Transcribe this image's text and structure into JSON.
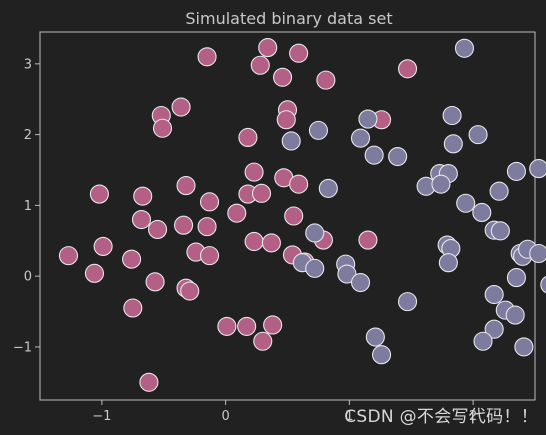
{
  "chart_data": {
    "type": "scatter",
    "title": "Simulated binary data set",
    "xlabel": "",
    "ylabel": "",
    "xlim": [
      -1.5,
      2.5
    ],
    "ylim": [
      -1.75,
      3.45
    ],
    "xticks": [
      -1,
      0,
      1,
      2
    ],
    "xtick_labels": [
      "−1",
      "0",
      "1",
      "2"
    ],
    "yticks": [
      -1,
      0,
      1,
      2,
      3
    ],
    "ytick_labels": [
      "−1",
      "0",
      "1",
      "2",
      "3"
    ],
    "grid": false,
    "legend": "none",
    "colors": {
      "background": "#212121",
      "axis": "#bdbdbd",
      "text": "#c8c8c8",
      "point_edge": "#e6e6ea",
      "class0": "#b45f86",
      "class1": "#7d7b9e"
    },
    "series": [
      {
        "color": "#b45f86",
        "points": [
          [
            0.34,
            3.23
          ],
          [
            0.59,
            3.15
          ],
          [
            -0.15,
            3.1
          ],
          [
            0.28,
            2.98
          ],
          [
            0.46,
            2.81
          ],
          [
            0.81,
            2.77
          ],
          [
            1.47,
            2.93
          ],
          [
            -0.52,
            2.27
          ],
          [
            -0.36,
            2.39
          ],
          [
            -0.51,
            2.09
          ],
          [
            0.5,
            2.35
          ],
          [
            0.49,
            2.21
          ],
          [
            0.18,
            1.96
          ],
          [
            1.26,
            2.21
          ],
          [
            -1.02,
            1.16
          ],
          [
            -0.67,
            1.13
          ],
          [
            -0.32,
            1.28
          ],
          [
            -0.13,
            1.05
          ],
          [
            0.18,
            1.16
          ],
          [
            0.23,
            1.47
          ],
          [
            0.29,
            1.17
          ],
          [
            0.47,
            1.39
          ],
          [
            0.59,
            1.3
          ],
          [
            -0.68,
            0.8
          ],
          [
            -0.55,
            0.66
          ],
          [
            -0.34,
            0.72
          ],
          [
            -0.15,
            0.7
          ],
          [
            0.09,
            0.89
          ],
          [
            0.55,
            0.85
          ],
          [
            -1.27,
            0.29
          ],
          [
            -0.99,
            0.42
          ],
          [
            -1.06,
            0.04
          ],
          [
            -0.76,
            0.24
          ],
          [
            -0.24,
            0.34
          ],
          [
            -0.13,
            0.29
          ],
          [
            0.23,
            0.49
          ],
          [
            0.37,
            0.47
          ],
          [
            0.54,
            0.3
          ],
          [
            0.64,
            0.2
          ],
          [
            0.79,
            0.51
          ],
          [
            1.15,
            0.51
          ],
          [
            -0.57,
            -0.08
          ],
          [
            -0.32,
            -0.17
          ],
          [
            -0.29,
            -0.21
          ],
          [
            -0.75,
            -0.45
          ],
          [
            0.01,
            -0.71
          ],
          [
            0.17,
            -0.71
          ],
          [
            0.38,
            -0.69
          ],
          [
            0.3,
            -0.92
          ],
          [
            -0.62,
            -1.5
          ]
        ]
      },
      {
        "color": "#7d7b9e",
        "points": [
          [
            1.93,
            3.22
          ],
          [
            0.75,
            2.06
          ],
          [
            0.53,
            1.91
          ],
          [
            1.15,
            2.22
          ],
          [
            1.09,
            1.95
          ],
          [
            1.2,
            1.71
          ],
          [
            1.39,
            1.69
          ],
          [
            1.83,
            2.27
          ],
          [
            1.84,
            1.87
          ],
          [
            2.04,
            2.0
          ],
          [
            0.83,
            1.24
          ],
          [
            1.62,
            1.27
          ],
          [
            1.73,
            1.45
          ],
          [
            1.8,
            1.45
          ],
          [
            1.74,
            1.3
          ],
          [
            1.94,
            1.03
          ],
          [
            2.07,
            0.9
          ],
          [
            2.21,
            1.2
          ],
          [
            2.35,
            1.48
          ],
          [
            2.53,
            1.52
          ],
          [
            2.82,
            1.47
          ],
          [
            0.72,
            0.61
          ],
          [
            0.62,
            0.19
          ],
          [
            0.72,
            0.11
          ],
          [
            0.97,
            0.17
          ],
          [
            0.98,
            0.03
          ],
          [
            1.09,
            -0.09
          ],
          [
            1.79,
            0.44
          ],
          [
            1.82,
            0.39
          ],
          [
            1.8,
            0.19
          ],
          [
            2.17,
            0.65
          ],
          [
            2.22,
            0.64
          ],
          [
            2.38,
            0.32
          ],
          [
            2.4,
            0.28
          ],
          [
            2.44,
            0.38
          ],
          [
            2.53,
            0.32
          ],
          [
            2.67,
            0.2
          ],
          [
            2.35,
            -0.02
          ],
          [
            2.62,
            -0.12
          ],
          [
            1.47,
            -0.36
          ],
          [
            2.17,
            -0.26
          ],
          [
            2.26,
            -0.48
          ],
          [
            2.34,
            -0.55
          ],
          [
            2.7,
            -0.7
          ],
          [
            2.78,
            -0.9
          ],
          [
            2.17,
            -0.75
          ],
          [
            2.08,
            -0.92
          ],
          [
            1.21,
            -0.86
          ],
          [
            1.26,
            -1.11
          ],
          [
            2.41,
            -1.0
          ],
          [
            2.91,
            -0.43
          ]
        ]
      }
    ]
  },
  "watermark": "CSDN @不会写代码！！"
}
